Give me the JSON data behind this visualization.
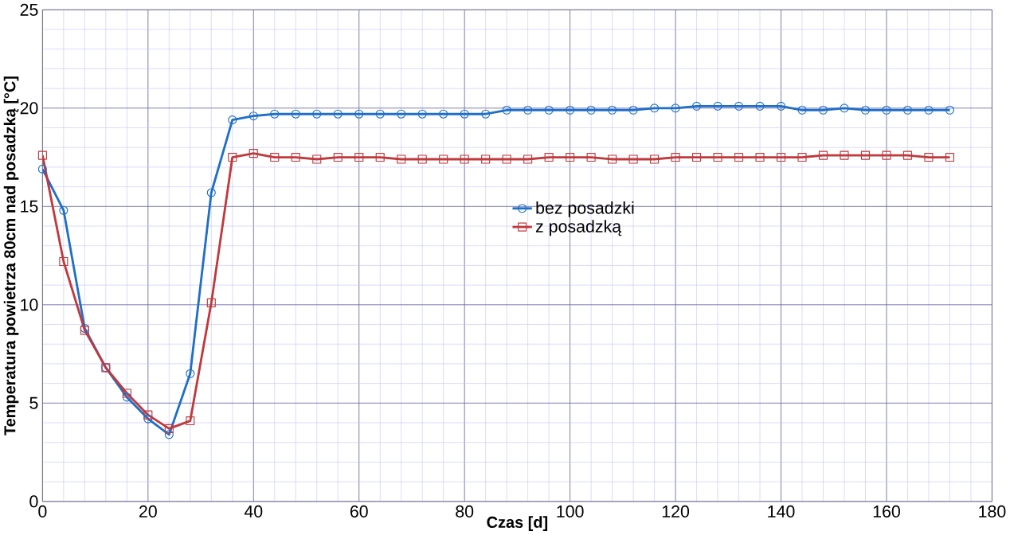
{
  "chart_data": {
    "type": "line",
    "xlabel": "Czas [d]",
    "ylabel": "Temperatura powietrza 80cm nad posadzką [°C]",
    "x": [
      0,
      4,
      8,
      12,
      16,
      20,
      24,
      28,
      32,
      36,
      40,
      44,
      48,
      52,
      56,
      60,
      64,
      68,
      72,
      76,
      80,
      84,
      88,
      92,
      96,
      100,
      104,
      108,
      112,
      116,
      120,
      124,
      128,
      132,
      136,
      140,
      144,
      148,
      152,
      156,
      160,
      164,
      168,
      172
    ],
    "series": [
      {
        "name": "bez posadzki",
        "color": "#1f6fc8",
        "marker": "circle",
        "values": [
          16.9,
          14.8,
          8.8,
          6.8,
          5.3,
          4.2,
          3.4,
          6.5,
          15.7,
          19.4,
          19.6,
          19.7,
          19.7,
          19.7,
          19.7,
          19.7,
          19.7,
          19.7,
          19.7,
          19.7,
          19.7,
          19.7,
          19.9,
          19.9,
          19.9,
          19.9,
          19.9,
          19.9,
          19.9,
          20.0,
          20.0,
          20.1,
          20.1,
          20.1,
          20.1,
          20.1,
          19.9,
          19.9,
          20.0,
          19.9,
          19.9,
          19.9,
          19.9,
          19.9
        ]
      },
      {
        "name": "z posadzką",
        "color": "#c0393b",
        "marker": "square",
        "values": [
          17.6,
          12.2,
          8.7,
          6.8,
          5.5,
          4.4,
          3.7,
          4.1,
          10.1,
          17.5,
          17.7,
          17.5,
          17.5,
          17.4,
          17.5,
          17.5,
          17.5,
          17.4,
          17.4,
          17.4,
          17.4,
          17.4,
          17.4,
          17.4,
          17.5,
          17.5,
          17.5,
          17.4,
          17.4,
          17.4,
          17.5,
          17.5,
          17.5,
          17.5,
          17.5,
          17.5,
          17.5,
          17.6,
          17.6,
          17.6,
          17.6,
          17.6,
          17.5,
          17.5
        ]
      }
    ],
    "xlim": [
      0,
      180
    ],
    "xticks": [
      0,
      {
        "value": 4,
        "label": null
      },
      {
        "value": 8,
        "label": null
      },
      {
        "value": 12,
        "label": null
      },
      {
        "value": 16,
        "label": null
      },
      20,
      {
        "value": 24,
        "label": null
      },
      {
        "value": 28,
        "label": null
      },
      {
        "value": 32,
        "label": null
      },
      {
        "value": 36,
        "label": null
      },
      40,
      {
        "value": 44,
        "label": null
      },
      {
        "value": 48,
        "label": null
      },
      {
        "value": 52,
        "label": null
      },
      {
        "value": 56,
        "label": null
      },
      60,
      {
        "value": 64,
        "label": null
      },
      {
        "value": 68,
        "label": null
      },
      {
        "value": 72,
        "label": null
      },
      {
        "value": 76,
        "label": null
      },
      80,
      {
        "value": 84,
        "label": null
      },
      {
        "value": 88,
        "label": null
      },
      {
        "value": 92,
        "label": null
      },
      {
        "value": 96,
        "label": null
      },
      100,
      {
        "value": 104,
        "label": null
      },
      {
        "value": 108,
        "label": null
      },
      {
        "value": 112,
        "label": null
      },
      {
        "value": 116,
        "label": null
      },
      120,
      {
        "value": 124,
        "label": null
      },
      {
        "value": 128,
        "label": null
      },
      {
        "value": 132,
        "label": null
      },
      {
        "value": 136,
        "label": null
      },
      140,
      {
        "value": 144,
        "label": null
      },
      {
        "value": 148,
        "label": null
      },
      {
        "value": 152,
        "label": null
      },
      {
        "value": 156,
        "label": null
      },
      160,
      {
        "value": 164,
        "label": null
      },
      {
        "value": 168,
        "label": null
      },
      {
        "value": 172,
        "label": null
      },
      {
        "value": 176,
        "label": null
      },
      180
    ],
    "ylim": [
      0,
      25
    ],
    "yticks": [
      0,
      {
        "value": 1,
        "label": null
      },
      {
        "value": 2,
        "label": null
      },
      {
        "value": 3,
        "label": null
      },
      {
        "value": 4,
        "label": null
      },
      5,
      {
        "value": 6,
        "label": null
      },
      {
        "value": 7,
        "label": null
      },
      {
        "value": 8,
        "label": null
      },
      {
        "value": 9,
        "label": null
      },
      10,
      {
        "value": 11,
        "label": null
      },
      {
        "value": 12,
        "label": null
      },
      {
        "value": 13,
        "label": null
      },
      {
        "value": 14,
        "label": null
      },
      15,
      {
        "value": 16,
        "label": null
      },
      {
        "value": 17,
        "label": null
      },
      {
        "value": 18,
        "label": null
      },
      {
        "value": 19,
        "label": null
      },
      20,
      {
        "value": 21,
        "label": null
      },
      {
        "value": 22,
        "label": null
      },
      {
        "value": 23,
        "label": null
      },
      {
        "value": 24,
        "label": null
      },
      25
    ],
    "grid": true,
    "legend": "center"
  }
}
